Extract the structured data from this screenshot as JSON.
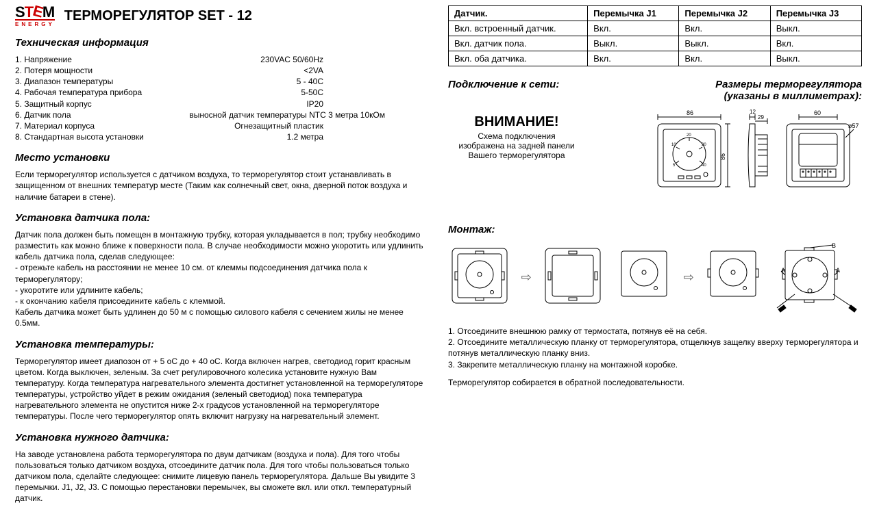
{
  "logo": {
    "mark_s": "S",
    "mark_t": "T",
    "mark_e": "E",
    "mark_m": "M",
    "sub": "ENERGY"
  },
  "product_title": "ТЕРМОРЕГУЛЯТОР SET -  12",
  "tech_info_header": "Техническая информация",
  "specs": [
    {
      "k": "1. Напряжение",
      "v": "230VAC 50/60Hz"
    },
    {
      "k": "2. Потеря мощности",
      "v": "<2VA"
    },
    {
      "k": "3. Диапазон температуры",
      "v": "5 - 40C"
    },
    {
      "k": "4. Рабочая температура прибора",
      "v": "5-50C"
    },
    {
      "k": "5. Защитный корпус",
      "v": "IP20"
    },
    {
      "k": "6. Датчик пола",
      "v": "выносной датчик температуры NTC 3 метра 10кОм",
      "wide": true
    },
    {
      "k": "7. Материал корпуса",
      "v": "Огнезащитный пластик"
    },
    {
      "k": "8. Стандартная высота установки",
      "v": "1.2 метра"
    }
  ],
  "install_place_header": "Место установки",
  "install_place_body": "Если терморегулятор используется с датчиком воздуха, то терморегулятор стоит устанавливать в защищенном от внешних температур месте (Таким как солнечный свет, окна, дверной поток воздуха и наличие батареи в стене).",
  "floor_sensor_header": "Установка датчика пола:",
  "floor_sensor_body": "Датчик пола должен быть помещен в монтажную трубку, которая укладывается в пол; трубку необходимо разместить как можно ближе к поверхности пола. В случае необходимости можно укоротить или удлинить кабель датчика пола, сделав следующее:\n- отрежьте кабель на расстоянии не менее 10 см. от  клеммы подсоединения датчика пола к терморегулятору;\n- укоротите или удлините кабель;\n- к окончанию кабеля присоедините кабель с клеммой.\nКабель датчика может быть удлинен до 50 м с помощью силового кабеля с сечением жилы  не менее 0.5мм.",
  "temp_set_header": "Установка температуры:",
  "temp_set_body": "Терморегулятор имеет диапозон от + 5 oC до + 40 oC. Когда включен нагрев,  светодиод горит красным цветом. Когда выключен, зеленым. За счет регулировочного колесика установите нужную Вам температуру. Когда температура нагревательного элемента достигнет установленной на терморегуляторе температуры, устройство уйдет в режим ожидания (зеленый светодиод) пока температура нагревательного элемента не опустится ниже 2-х градусов установленной на терморегуляторе температуры. После чего терморегулятор опять включит нагрузку на нагревательный элемент.",
  "sensor_sel_header": "Установка нужного датчика:",
  "sensor_sel_body": "На заводе установлена работа терморегулятора по двум датчикам (воздуха и пола).   Для того чтобы пользоваться только датчиком воздуха, отсоедините датчик пола.  Для того чтобы пользоваться только датчиком пола, сделайте следующее: снимите лицевую панель терморегулятора. Дальше Вы увидите 3 перемычки. J1, J2, J3. С помощью перестановки перемычек, вы сможете вкл. или откл. температурный датчик.",
  "jumper_table": {
    "headers": [
      "Датчик.",
      "Перемычка J1",
      "Перемычка J2",
      "Перемычка J3"
    ],
    "rows": [
      [
        "Вкл. встроенный датчик.",
        "Вкл.",
        "Вкл.",
        "Выкл."
      ],
      [
        "Вкл. датчик пола.",
        "Выкл.",
        "Выкл.",
        "Вкл."
      ],
      [
        "Вкл. оба датчика.",
        "Вкл.",
        "Вкл.",
        "Выкл."
      ]
    ]
  },
  "conn_header": "Подключение к сети:",
  "dims_header": "Размеры терморегулятора\n(указаны в миллиметрах):",
  "warning": {
    "title": "ВНИМАНИЕ!",
    "body": "Схема подключения\nизображена на задней панели\nВашего терморегулятора"
  },
  "dimensions": {
    "front_w": "86",
    "front_h": "86",
    "side_depth": "12",
    "side_face": "29",
    "back_w": "60",
    "back_hole": "ø57"
  },
  "dial_marks": [
    "5",
    "10",
    "20",
    "30",
    "40"
  ],
  "mount_header": "Монтаж:",
  "mount_labels": {
    "a": "A",
    "b": "B"
  },
  "mount_steps": [
    "Отсоедините внешнюю рамку от термостата, потянув её на себя.",
    "Отсоедините металлическую планку от терморегулятора, отщелкнув защелку вверху терморегулятора и потянув металлическую планку вниз.",
    "Закрепите металлическую планку на монтажной коробке."
  ],
  "mount_footer": "Терморегулятор собирается в обратной последовательности.",
  "colors": {
    "stroke": "#000000",
    "light": "#888888"
  }
}
